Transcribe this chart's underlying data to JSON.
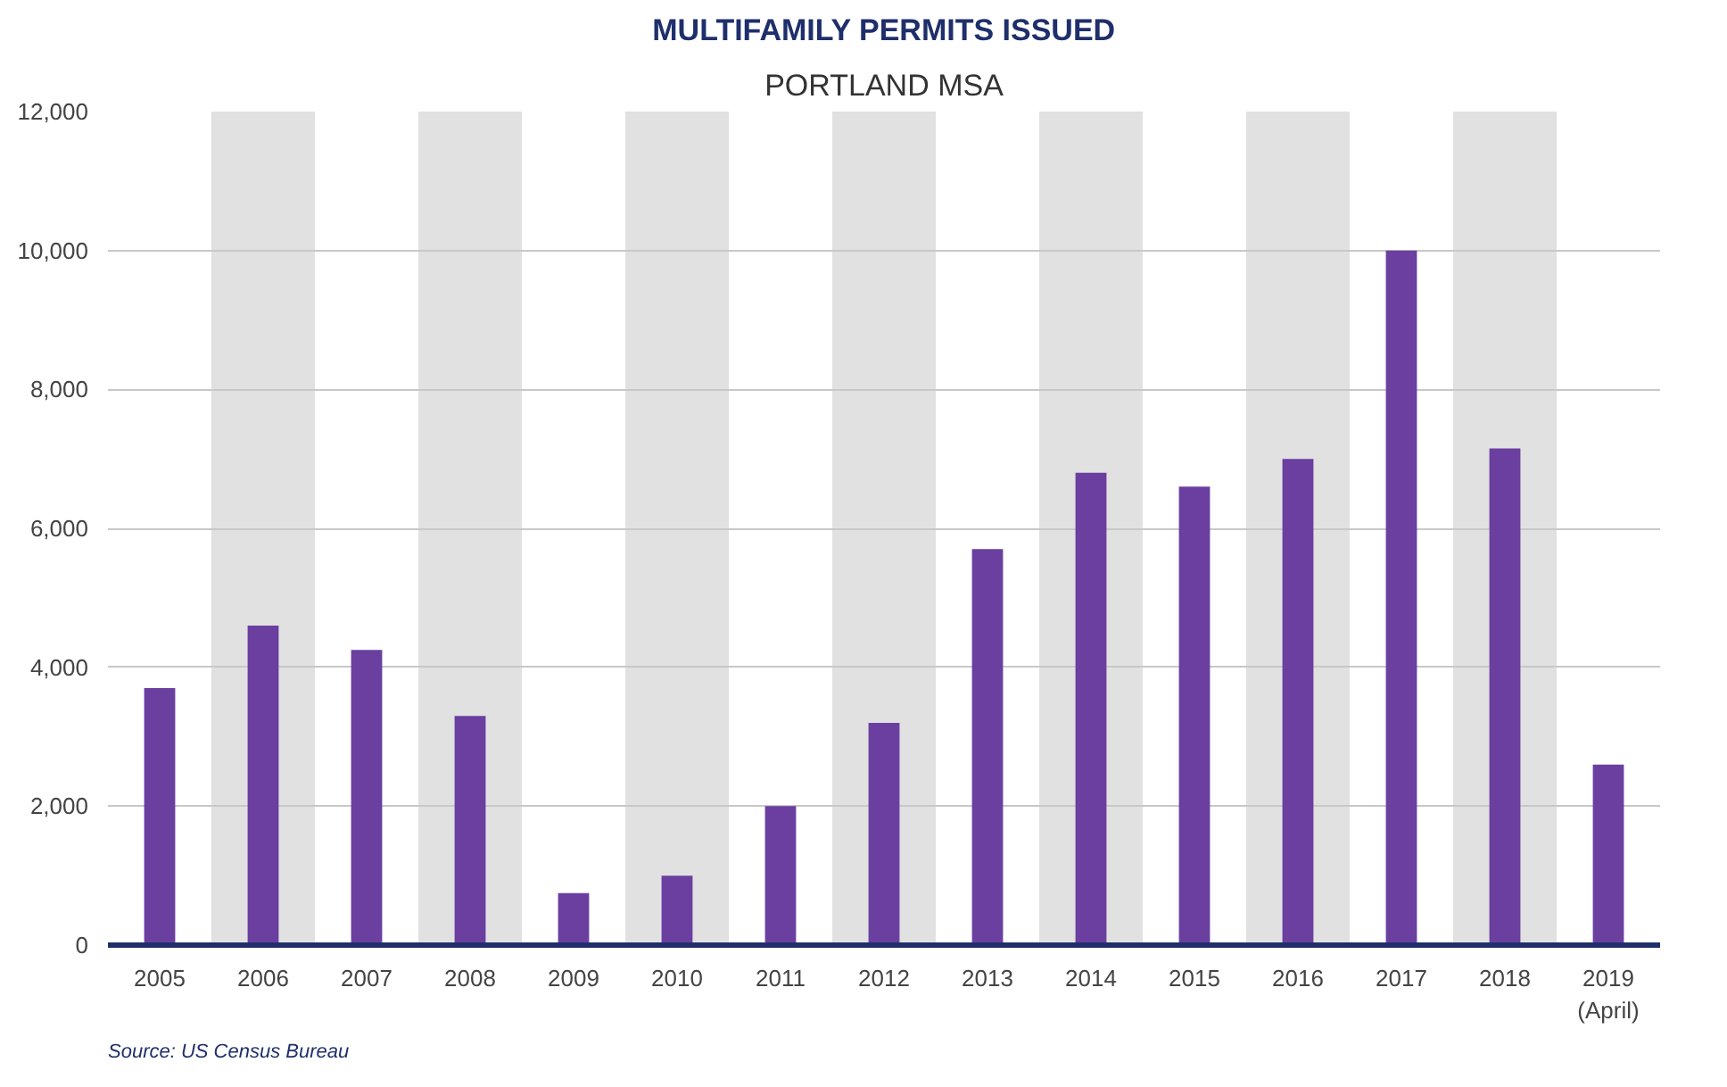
{
  "chart_data": {
    "type": "bar",
    "title": "MULTIFAMILY PERMITS ISSUED",
    "subtitle": "PORTLAND MSA",
    "categories": [
      "2005",
      "2006",
      "2007",
      "2008",
      "2009",
      "2010",
      "2011",
      "2012",
      "2013",
      "2014",
      "2015",
      "2016",
      "2017",
      "2018",
      "2019\n(April)"
    ],
    "values": [
      3700,
      4600,
      4250,
      3300,
      750,
      1000,
      2000,
      3200,
      5700,
      6800,
      6600,
      7000,
      10000,
      7150,
      2600
    ],
    "color": "#6a3fa0",
    "ylim": [
      0,
      12000
    ],
    "yticks": [
      {
        "value": 0,
        "label": "0"
      },
      {
        "value": 2000,
        "label": "2,000"
      },
      {
        "value": 4000,
        "label": "4,000"
      },
      {
        "value": 6000,
        "label": "6,000"
      },
      {
        "value": 8000,
        "label": "8,000"
      },
      {
        "value": 10000,
        "label": "10,000"
      },
      {
        "value": 12000,
        "label": "12,000"
      }
    ],
    "grid": true,
    "annotations": [
      "Source: US Census Bureau"
    ]
  }
}
